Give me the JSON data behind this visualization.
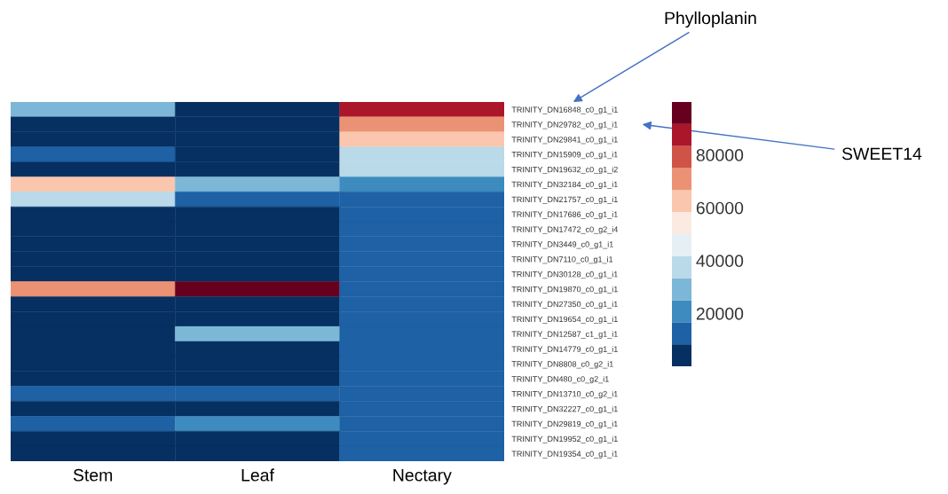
{
  "chart_data": {
    "type": "heatmap",
    "categories": [
      "Stem",
      "Leaf",
      "Nectary"
    ],
    "y_categories": [
      "TRINITY_DN16848_c0_g1_i1",
      "TRINITY_DN29782_c0_g1_i1",
      "TRINITY_DN29841_c0_g1_i1",
      "TRINITY_DN15909_c0_g1_i1",
      "TRINITY_DN19632_c0_g1_i2",
      "TRINITY_DN32184_c0_g1_i1",
      "TRINITY_DN21757_c0_g1_i1",
      "TRINITY_DN17686_c0_g1_i1",
      "TRINITY_DN17472_c0_g2_i4",
      "TRINITY_DN3449_c0_g1_i1",
      "TRINITY_DN7110_c0_g1_i1",
      "TRINITY_DN30128_c0_g1_i1",
      "TRINITY_DN19870_c0_g1_i1",
      "TRINITY_DN27350_c0_g1_i1",
      "TRINITY_DN19654_c0_g1_i1",
      "TRINITY_DN12587_c1_g1_i1",
      "TRINITY_DN14779_c0_g1_i1",
      "TRINITY_DN8808_c0_g2_i1",
      "TRINITY_DN480_c0_g2_i1",
      "TRINITY_DN13710_c0_g2_i1",
      "TRINITY_DN32227_c0_g1_i1",
      "TRINITY_DN29819_c0_g1_i1",
      "TRINITY_DN19952_c0_g1_i1",
      "TRINITY_DN19354_c0_g1_i1"
    ],
    "cells": [
      [
        29000,
        4000,
        87500
      ],
      [
        4000,
        4000,
        71000
      ],
      [
        4000,
        4000,
        62500
      ],
      [
        12500,
        4000,
        37500
      ],
      [
        4000,
        4000,
        37500
      ],
      [
        62500,
        29000,
        21000
      ],
      [
        37500,
        12500,
        12500
      ],
      [
        4000,
        4000,
        12500
      ],
      [
        4000,
        4000,
        12500
      ],
      [
        4000,
        4000,
        12500
      ],
      [
        4000,
        4000,
        12500
      ],
      [
        4000,
        4000,
        12500
      ],
      [
        71000,
        96000,
        12500
      ],
      [
        4000,
        4000,
        12500
      ],
      [
        4000,
        4000,
        12500
      ],
      [
        4000,
        29000,
        12500
      ],
      [
        4000,
        4000,
        12500
      ],
      [
        4000,
        4000,
        12500
      ],
      [
        4000,
        4000,
        12500
      ],
      [
        12500,
        12500,
        12500
      ],
      [
        4000,
        4000,
        12500
      ],
      [
        12500,
        21000,
        12500
      ],
      [
        4000,
        4000,
        12500
      ],
      [
        4000,
        4000,
        12500
      ]
    ],
    "clim": [
      0,
      100000
    ],
    "cticks": [
      20000,
      40000,
      60000,
      80000
    ],
    "annotations": [
      "Phylloplanin",
      "SWEET14"
    ]
  }
}
